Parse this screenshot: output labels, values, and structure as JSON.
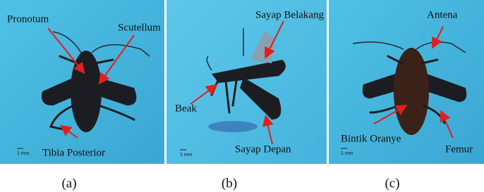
{
  "panels": [
    {
      "caption": "(a)",
      "scale": "1 mm",
      "labels": [
        "Pronotum",
        "Scutellum",
        "Tibia Posterior"
      ]
    },
    {
      "caption": "(b)",
      "scale": "1 mm",
      "labels": [
        "Sayap Belakang",
        "Beak",
        "Sayap Depan"
      ]
    },
    {
      "caption": "(c)",
      "scale": "1 mm",
      "labels": [
        "Antena",
        "Bintik Oranye",
        "Femur"
      ]
    }
  ]
}
